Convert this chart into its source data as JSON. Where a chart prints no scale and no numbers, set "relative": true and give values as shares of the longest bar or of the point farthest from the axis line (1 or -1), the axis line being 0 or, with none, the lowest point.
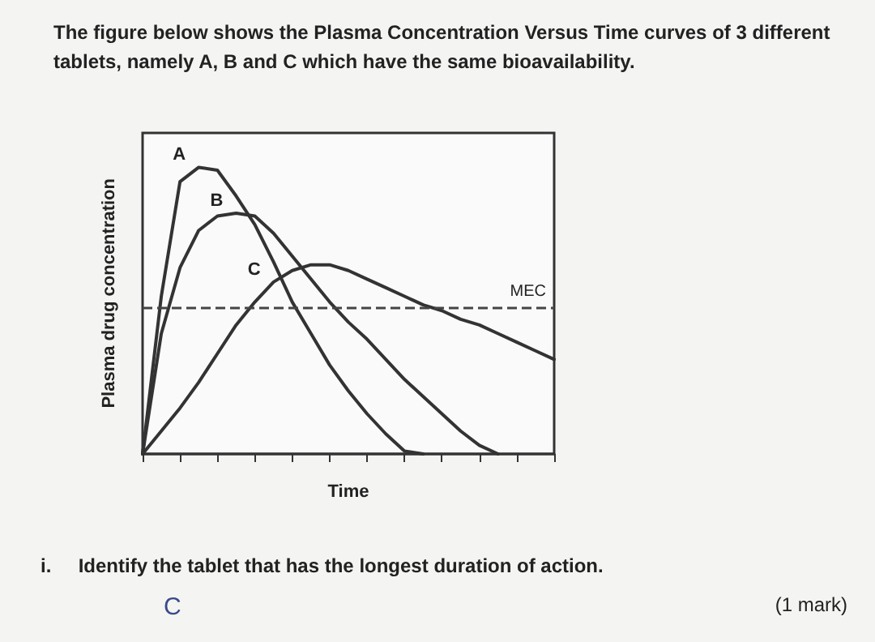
{
  "chart_data": {
    "type": "line",
    "title": "The figure below shows the Plasma Concentration Versus Time curves of 3 different tablets, namely A, B and C which have the same bioavailability.",
    "xlabel": "Time",
    "ylabel": "Plasma drug concentration",
    "relative": true,
    "categories": [
      null,
      null,
      null,
      null,
      null,
      null,
      null,
      null,
      null,
      null,
      null,
      null,
      null,
      null,
      null,
      null,
      null,
      null,
      null,
      null,
      null,
      null,
      null
    ],
    "series": [
      {
        "name": "A",
        "color": "#333333",
        "values": [
          0,
          0.55,
          0.95,
          1.0,
          0.99,
          0.9,
          0.8,
          0.67,
          0.53,
          0.42,
          0.31,
          0.22,
          0.14,
          0.07,
          0.01,
          0,
          null,
          null,
          null,
          null,
          null,
          null,
          null
        ]
      },
      {
        "name": "B",
        "color": "#333333",
        "values": [
          0,
          0.42,
          0.65,
          0.78,
          0.83,
          0.84,
          0.83,
          0.77,
          0.69,
          0.61,
          0.53,
          0.46,
          0.4,
          0.33,
          0.26,
          0.2,
          0.14,
          0.08,
          0.03,
          0,
          null,
          null,
          null
        ]
      },
      {
        "name": "C",
        "color": "#333333",
        "values": [
          0,
          0.08,
          0.16,
          0.25,
          0.35,
          0.45,
          0.53,
          0.6,
          0.64,
          0.66,
          0.66,
          0.64,
          0.61,
          0.58,
          0.55,
          0.52,
          0.5,
          0.47,
          0.45,
          0.42,
          0.39,
          0.36,
          0.33
        ]
      }
    ],
    "ref_lines": [
      {
        "axis": "y",
        "value": 0.51,
        "label": "MEC",
        "line_style": "dashed"
      }
    ],
    "annotations": [
      "i.     Identify the tablet that has the longest duration of action.",
      "(1 mark)",
      "C"
    ],
    "legend": false,
    "grid": false,
    "marker": "none",
    "line_style": "solid"
  }
}
